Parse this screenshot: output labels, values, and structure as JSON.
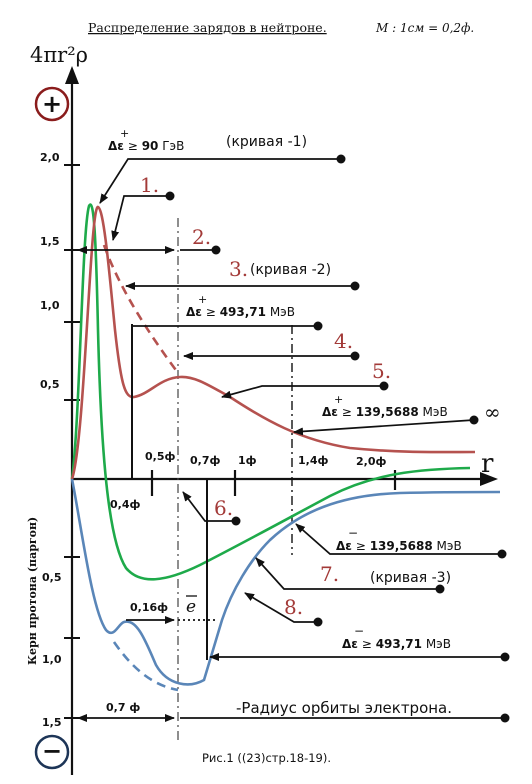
{
  "title": "Распределение зарядов в нейтроне.",
  "scale": "M : 1см = 0,2ф.",
  "y_axis_label": "4πr²ρ",
  "x_axis_label": "r",
  "left_axis_label": "Керн протона (паргон)",
  "plus_sign": "+",
  "minus_sign": "−",
  "upper_ticks": [
    "2,0",
    "1,5",
    "1,0",
    "0,5"
  ],
  "lower_ticks": [
    "0,5",
    "1,0",
    "1,5"
  ],
  "x_ticks_above": [
    "0,5ф",
    "0,7ф",
    "1ф",
    "1,4ф",
    "2,0ф"
  ],
  "x_tick_04": "0,4ф",
  "ann_016": "0,16ф",
  "ann_07": "0,7 ф",
  "electron_symbol": "e",
  "infinity": "∞",
  "energy_labels": {
    "e90": {
      "sym": "Δε",
      "rel": "≥",
      "val": "90",
      "unit": "ГэВ"
    },
    "e493_plus": {
      "sym": "Δε",
      "rel": "≥",
      "val": "493,71",
      "unit": "МэВ"
    },
    "e139_plus": {
      "sym": "Δε",
      "rel": "≥",
      "val": "139,5688",
      "unit": "МэВ"
    },
    "e139_minus": {
      "sym": "Δε",
      "rel": "≥",
      "val": "139,5688",
      "unit": "МэВ"
    },
    "e493_minus": {
      "sym": "Δε",
      "rel": "≥",
      "val": "493,71",
      "unit": "МэВ"
    }
  },
  "curve1_label": "(кривая -1)",
  "curve2_label": "(кривая -2)",
  "curve3_label": "(кривая -3)",
  "numbers": [
    "1.",
    "2.",
    "3.",
    "4.",
    "5.",
    "6.",
    "7.",
    "8."
  ],
  "orbit_text": "-Радиус  орбиты электрона.",
  "caption": "Рис.1 ((23)стр.18-19).",
  "colors": {
    "red": "#b5524f",
    "green": "#1eaa4a",
    "blue": "#5a86b8",
    "accent": "#a33a38",
    "navy": "#1d3557"
  }
}
